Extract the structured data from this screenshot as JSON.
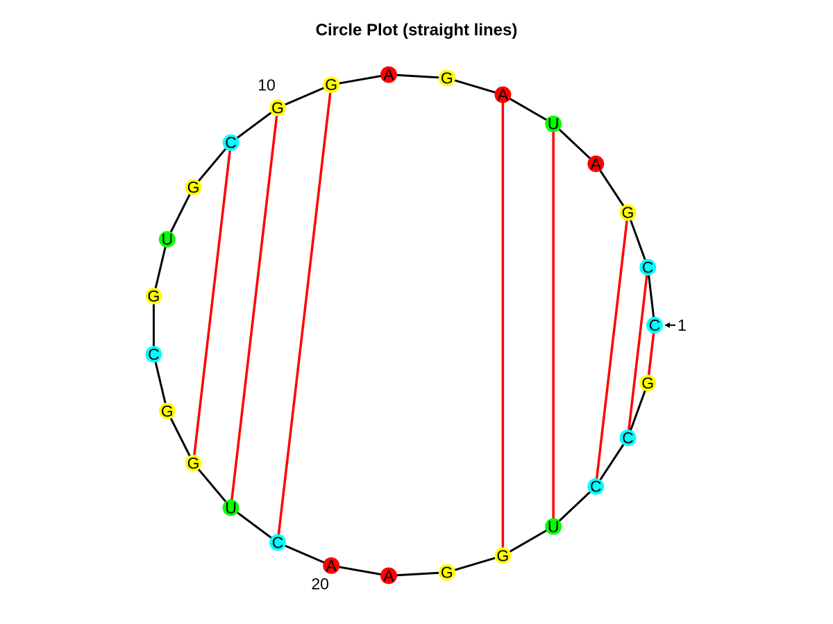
{
  "title": "Circle Plot (straight lines)",
  "sequence": [
    "C",
    "C",
    "G",
    "A",
    "U",
    "A",
    "G",
    "A",
    "G",
    "G",
    "C",
    "G",
    "U",
    "G",
    "C",
    "G",
    "G",
    "U",
    "C",
    "A",
    "A",
    "G",
    "G",
    "U",
    "C",
    "C",
    "G"
  ],
  "pairs": [
    [
      1,
      27
    ],
    [
      2,
      26
    ],
    [
      3,
      25
    ],
    [
      5,
      24
    ],
    [
      6,
      23
    ],
    [
      9,
      19
    ],
    [
      10,
      18
    ],
    [
      11,
      17
    ]
  ],
  "position_labels": [
    {
      "index": 1,
      "text": "1",
      "arrow": true
    },
    {
      "index": 10,
      "text": "10",
      "arrow": false
    },
    {
      "index": 20,
      "text": "20",
      "arrow": false
    }
  ],
  "colors": {
    "A": "#ff0000",
    "C": "#00ffff",
    "G": "#ffff00",
    "U": "#00ff00",
    "backbone": "#000000",
    "pair_line": "#ff0000"
  }
}
